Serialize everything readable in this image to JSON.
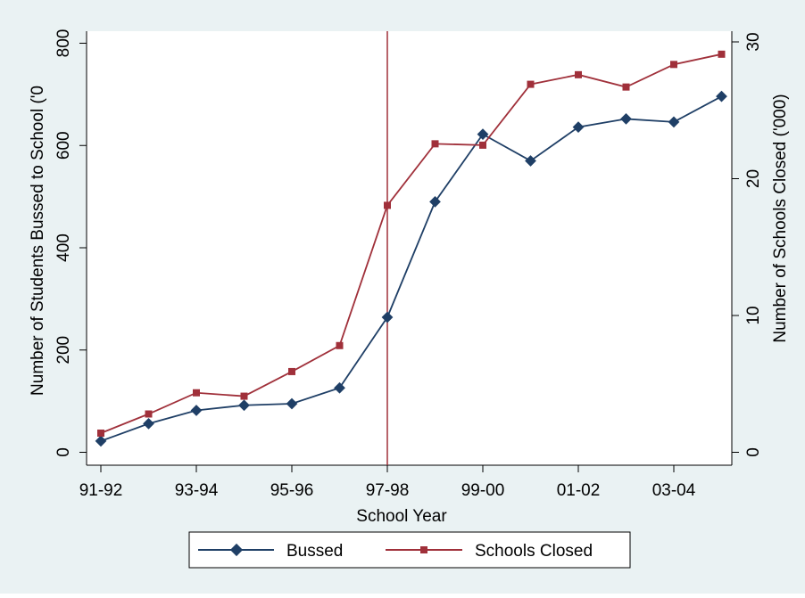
{
  "chart_data": {
    "type": "line",
    "xlabel": "School Year",
    "ylabel_left": "Number of Students Bussed to School ('0",
    "ylabel_right": "Number of Schools Closed ('000)",
    "x_tick_labels": [
      "91-92",
      "93-94",
      "95-96",
      "97-98",
      "99-00",
      "01-02",
      "03-04"
    ],
    "x_tick_positions": [
      0,
      2,
      4,
      6,
      8,
      10,
      12
    ],
    "y_left_ticks": [
      0,
      200,
      400,
      600,
      800
    ],
    "y_right_ticks": [
      0,
      10,
      20,
      30
    ],
    "ylim_left": [
      -15,
      810
    ],
    "ylim_right": [
      -0.5625,
      30.375
    ],
    "vertical_line_at": "97-98",
    "legend_position": "bottom-center",
    "series": [
      {
        "name": "Bussed",
        "axis": "left",
        "color": "#1f3f66",
        "marker": "diamond",
        "x": [
          0,
          1,
          2,
          3,
          4,
          5,
          6,
          7,
          8,
          9,
          10,
          11,
          12,
          13
        ],
        "values": [
          22,
          56,
          82,
          92,
          95,
          126,
          264,
          490,
          622,
          570,
          636,
          652,
          646,
          696
        ]
      },
      {
        "name": "Schools Closed",
        "axis": "right",
        "color": "#a0303a",
        "marker": "square",
        "x": [
          0,
          1,
          2,
          3,
          4,
          5,
          6,
          7,
          8,
          9,
          10,
          11,
          12,
          13
        ],
        "values": [
          1.4,
          2.8,
          4.35,
          4.1,
          5.9,
          7.8,
          18.05,
          22.55,
          22.45,
          26.9,
          27.6,
          26.7,
          28.35,
          29.1
        ]
      }
    ]
  }
}
